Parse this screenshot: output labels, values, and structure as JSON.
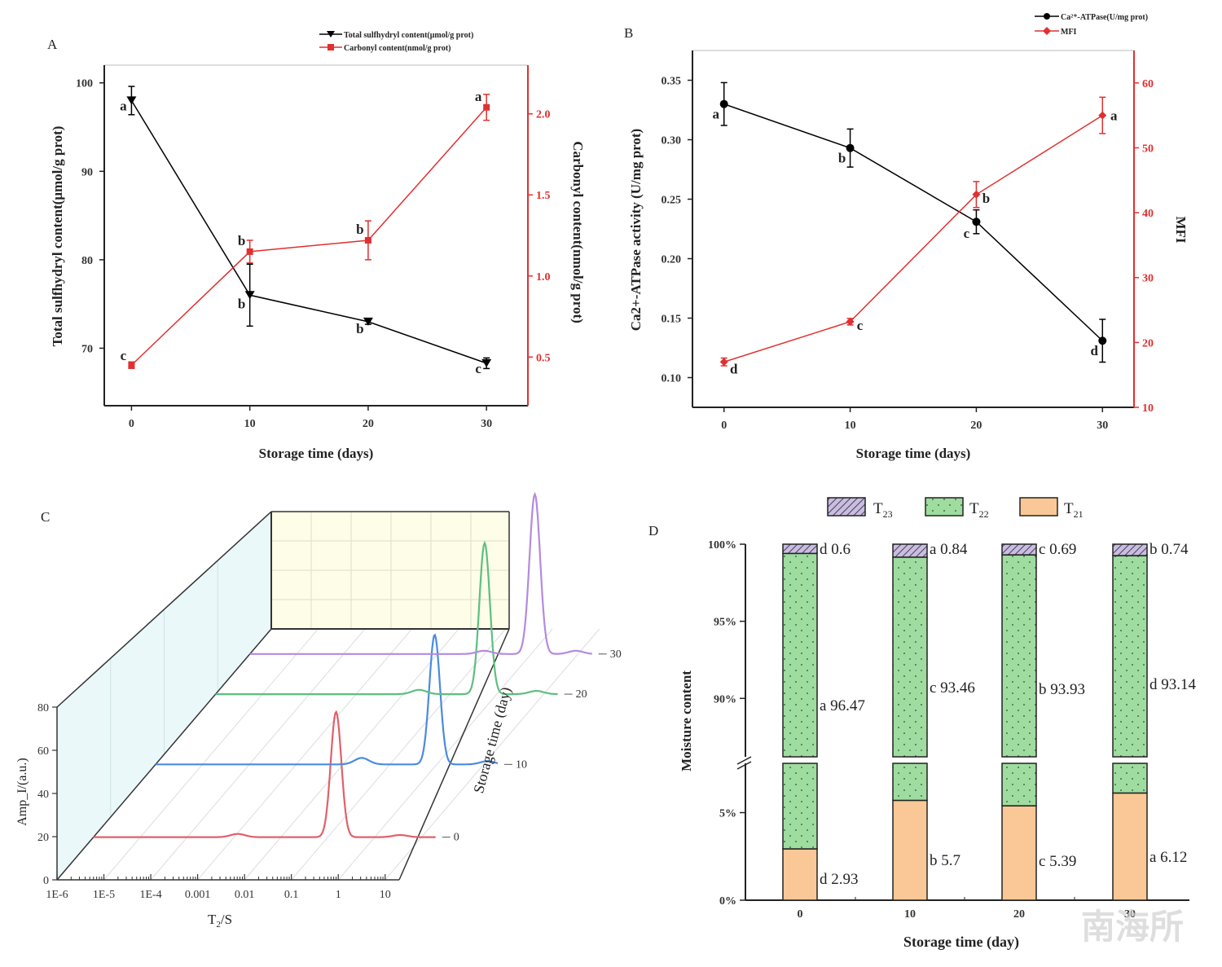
{
  "chart_data": [
    {
      "panel": "A",
      "type": "line",
      "x": [
        0,
        10,
        20,
        30
      ],
      "xlabel": "Storage time (days)",
      "xticks": [
        "0",
        "10",
        "20",
        "30"
      ],
      "series": [
        {
          "name": "Total sulfhydryl content(μmol/g prot)",
          "axis": "left",
          "color": "#000000",
          "marker": "triangle-down",
          "values": [
            98.0,
            76.0,
            73.0,
            68.3
          ],
          "errors": [
            1.6,
            3.5,
            0.3,
            0.6
          ],
          "letters": [
            "a",
            "b",
            "b",
            "c"
          ]
        },
        {
          "name": "Carbonyl content(nmol/g prot)",
          "axis": "right",
          "color": "#e03030",
          "marker": "square",
          "values": [
            0.45,
            1.15,
            1.22,
            2.04
          ],
          "errors": [
            0.02,
            0.07,
            0.12,
            0.08
          ],
          "letters": [
            "c",
            "b",
            "b",
            "a"
          ]
        }
      ],
      "ylabel_left": "Total sulfhydryl content(μmol/g prot)",
      "ylabel_right": "Carbonyl content(nmol/g prot)",
      "ylim_left": [
        63.5,
        102
      ],
      "yticks_left": [
        "70",
        "80",
        "90",
        "100"
      ],
      "ylim_right": [
        0.2,
        2.3
      ],
      "yticks_right": [
        "0.5",
        "1.0",
        "1.5",
        "2.0"
      ],
      "legend": "top-right"
    },
    {
      "panel": "B",
      "type": "line",
      "x": [
        0,
        10,
        20,
        30
      ],
      "xlabel": "Storage time (days)",
      "xticks": [
        "0",
        "10",
        "20",
        "30"
      ],
      "series": [
        {
          "name": "Ca2+-ATPase(U/mg prot)",
          "axis": "left",
          "color": "#000000",
          "marker": "circle",
          "values": [
            0.33,
            0.293,
            0.231,
            0.131
          ],
          "errors": [
            0.018,
            0.016,
            0.01,
            0.018
          ],
          "letters": [
            "a",
            "b",
            "c",
            "d"
          ]
        },
        {
          "name": "MFI",
          "axis": "right",
          "color": "#e03030",
          "marker": "diamond",
          "values": [
            17.0,
            23.2,
            42.8,
            55.0
          ],
          "errors": [
            0.6,
            0.5,
            2.0,
            2.8
          ],
          "letters": [
            "d",
            "c",
            "b",
            "a"
          ]
        }
      ],
      "ylabel_left": "Ca2+-ATPase activity (U/mg prot)",
      "ylabel_right": "MFI",
      "ylim_left": [
        0.075,
        0.375
      ],
      "yticks_left": [
        "0.10",
        "0.15",
        "0.20",
        "0.25",
        "0.30",
        "0.35"
      ],
      "ylim_right": [
        10,
        65
      ],
      "yticks_right": [
        "10",
        "20",
        "30",
        "40",
        "50",
        "60"
      ],
      "legend": "top-right"
    },
    {
      "panel": "C",
      "type": "line",
      "subtype": "3d-waterfall",
      "xlabel": "T2/S",
      "ylabel": "Amp_I/(a.u.)",
      "zlabel": "Storage time (day)",
      "xticks": [
        "1E-6",
        "1E-5",
        "1E-4",
        "0.001",
        "0.01",
        "0.1",
        "1",
        "10"
      ],
      "yticks": [
        "0",
        "20",
        "40",
        "60",
        "80"
      ],
      "zticks": [
        "0",
        "10",
        "20",
        "30"
      ],
      "series": [
        {
          "name": "0",
          "color": "#e0606a",
          "peaks": [
            {
              "t2": 0.0012,
              "amp": 1.5
            },
            {
              "t2": 0.15,
              "amp": 58
            },
            {
              "t2": 3.5,
              "amp": 1
            }
          ]
        },
        {
          "name": "10",
          "color": "#4a8ae0",
          "peaks": [
            {
              "t2": 0.025,
              "amp": 3
            },
            {
              "t2": 0.9,
              "amp": 60
            },
            {
              "t2": 12,
              "amp": 1.5
            }
          ]
        },
        {
          "name": "20",
          "color": "#5cbf80",
          "peaks": [
            {
              "t2": 0.022,
              "amp": 2
            },
            {
              "t2": 0.55,
              "amp": 70
            },
            {
              "t2": 7,
              "amp": 1.5
            }
          ]
        },
        {
          "name": "30",
          "color": "#b38ae0",
          "peaks": [
            {
              "t2": 0.1,
              "amp": 1.5
            },
            {
              "t2": 1.2,
              "amp": 74
            },
            {
              "t2": 9,
              "amp": 1.5
            }
          ]
        }
      ]
    },
    {
      "panel": "D",
      "type": "bar",
      "subtype": "stacked-broken-axis",
      "categories": [
        "0",
        "10",
        "20",
        "30"
      ],
      "xlabel": "Storage time (day)",
      "ylabel": "Moisture content",
      "yticks": [
        "0%",
        "5%",
        "90%",
        "95%",
        "100%"
      ],
      "ylim_lower": [
        0,
        8
      ],
      "ylim_upper": [
        86,
        100
      ],
      "series": [
        {
          "name": "T21",
          "color": "#f9c896",
          "values": [
            2.93,
            5.7,
            5.39,
            6.12
          ],
          "letters": [
            "d",
            "b",
            "c",
            "a"
          ],
          "labels": [
            "d 2.93",
            "b 5.7",
            "c 5.39",
            "a 6.12"
          ]
        },
        {
          "name": "T22",
          "color": "#9fdca0",
          "pattern": "dots",
          "values": [
            96.47,
            93.46,
            93.93,
            93.14
          ],
          "letters": [
            "a",
            "c",
            "b",
            "d"
          ],
          "labels": [
            "a 96.47",
            "c 93.46",
            "b 93.93",
            "d 93.14"
          ]
        },
        {
          "name": "T23",
          "color": "#b8a8d0",
          "pattern": "hatch",
          "values": [
            0.6,
            0.84,
            0.69,
            0.74
          ],
          "letters": [
            "d",
            "a",
            "c",
            "b"
          ],
          "labels": [
            "d 0.6",
            "a 0.84",
            "c 0.69",
            "b 0.74"
          ]
        }
      ],
      "legend": "top"
    }
  ],
  "panels": {
    "A": "A",
    "B": "B",
    "C": "C",
    "D": "D"
  },
  "legendA": [
    "Total sulfhydryl content(μmol/g prot)",
    "Carbonyl content(nmol/g prot)"
  ],
  "legendB": [
    "Ca²⁺-ATPase(U/mg prot)",
    "MFI"
  ],
  "legendD": [
    "T",
    "23",
    "T",
    "22",
    "T",
    "21"
  ],
  "watermark": "南海所"
}
